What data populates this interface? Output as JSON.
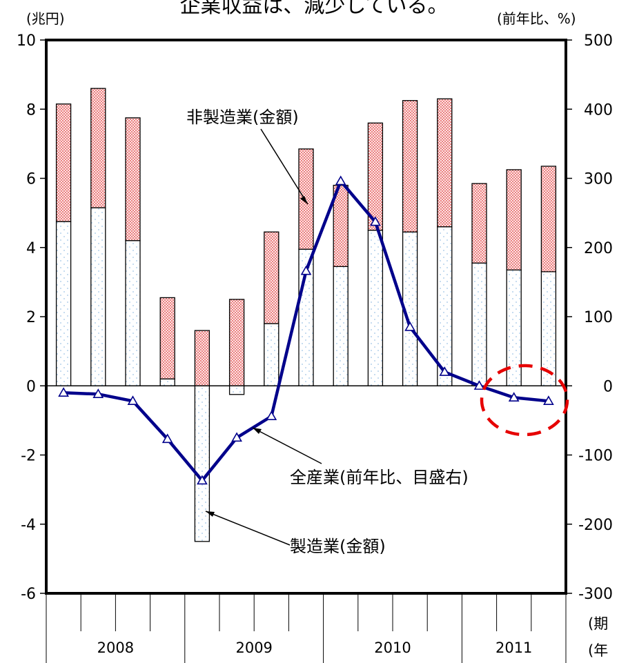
{
  "chart_data": {
    "type": "bar",
    "title": "企業収益は、減少している。",
    "left_axis_unit": "(兆円)",
    "right_axis_unit": "(前年比、%)",
    "left_ylim": [
      -6,
      10
    ],
    "left_ticks": [
      "10",
      "8",
      "6",
      "4",
      "2",
      "0",
      "-2",
      "-4",
      "-6"
    ],
    "right_ylim": [
      -300,
      500
    ],
    "right_ticks": [
      "500",
      "400",
      "300",
      "200",
      "100",
      "0",
      "-100",
      "-200",
      "-300"
    ],
    "x_unit_labels": [
      "(期",
      "(年"
    ],
    "years": [
      {
        "label": "2008",
        "start": 0,
        "end": 4
      },
      {
        "label": "2009",
        "start": 4,
        "end": 8
      },
      {
        "label": "2010",
        "start": 8,
        "end": 12
      },
      {
        "label": "2011",
        "start": 12,
        "end": 15
      }
    ],
    "quarters": 15,
    "series": [
      {
        "name": "製造業(金額)",
        "kind": "bar",
        "color": "#9ec3e6",
        "values": [
          4.75,
          5.15,
          4.2,
          0.2,
          -4.5,
          -0.25,
          1.8,
          3.95,
          3.45,
          4.5,
          4.45,
          4.6,
          3.55,
          3.35,
          3.3
        ]
      },
      {
        "name": "非製造業(金額)",
        "kind": "bar",
        "color": "#e23a3a",
        "values": [
          3.4,
          3.45,
          3.55,
          2.35,
          1.6,
          2.5,
          2.65,
          2.9,
          2.35,
          3.1,
          3.8,
          3.7,
          2.3,
          2.9,
          3.05
        ]
      },
      {
        "name": "全産業(前年比、目盛右)",
        "kind": "line",
        "color": "#00008b",
        "values": [
          -10,
          -12,
          -22,
          -77,
          -137,
          -75,
          -44,
          166,
          296,
          237,
          85,
          20,
          0,
          -17,
          -22
        ]
      }
    ],
    "annotations": {
      "nonmfg": "非製造業(金額)",
      "all": "全産業(前年比、目盛右)",
      "mfg": "製造業(金額)"
    },
    "highlight_color": "#e60000"
  }
}
